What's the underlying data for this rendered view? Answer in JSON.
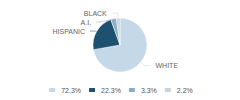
{
  "chart_data": {
    "type": "pie",
    "categories": [
      "WHITE",
      "HISPANIC",
      "A.I.",
      "BLACK"
    ],
    "values": [
      72.3,
      22.3,
      3.3,
      2.2
    ],
    "value_labels": [
      "72.3%",
      "22.3%",
      "3.3%",
      "2.2%"
    ],
    "colors": [
      "#c5d8e8",
      "#1e5070",
      "#8aafc0",
      "#c8d4dc"
    ],
    "legend": "bottom"
  }
}
